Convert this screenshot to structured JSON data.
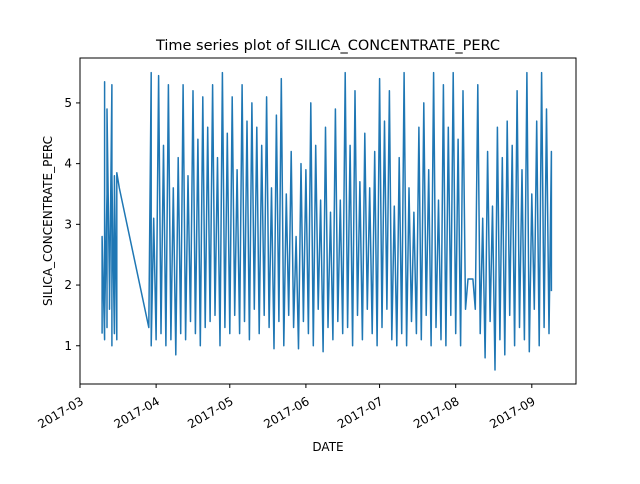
{
  "chart_data": {
    "type": "line",
    "title": "Time series plot of SILICA_CONCENTRATE_PERC",
    "xlabel": "DATE",
    "ylabel": "SILICA_CONCENTRATE_PERC",
    "x_ticks": [
      "2017-03",
      "2017-04",
      "2017-05",
      "2017-06",
      "2017-07",
      "2017-08",
      "2017-09"
    ],
    "y_ticks": [
      1,
      2,
      3,
      4,
      5
    ],
    "xlim": [
      "2017-03-01",
      "2017-09-19"
    ],
    "ylim": [
      0.37,
      5.74
    ],
    "grid": false,
    "series_color": "#1f77b4",
    "series": [
      {
        "x": [
          "2017-03-10",
          "2017-03-10",
          "2017-03-11",
          "2017-03-11",
          "2017-03-11",
          "2017-03-12",
          "2017-03-12",
          "2017-03-12",
          "2017-03-13",
          "2017-03-13",
          "2017-03-14",
          "2017-03-14",
          "2017-03-14",
          "2017-03-15",
          "2017-03-15",
          "2017-03-16",
          "2017-03-16",
          "2017-03-17",
          "2017-03-29",
          "2017-03-30",
          "2017-03-30",
          "2017-03-31",
          "2017-04-01",
          "2017-04-02",
          "2017-04-03",
          "2017-04-04",
          "2017-04-05",
          "2017-04-06",
          "2017-04-07",
          "2017-04-08",
          "2017-04-09",
          "2017-04-10",
          "2017-04-11",
          "2017-04-12",
          "2017-04-13",
          "2017-04-14",
          "2017-04-15",
          "2017-04-16",
          "2017-04-17",
          "2017-04-18",
          "2017-04-19",
          "2017-04-20",
          "2017-04-21",
          "2017-04-22",
          "2017-04-23",
          "2017-04-24",
          "2017-04-25",
          "2017-04-26",
          "2017-04-27",
          "2017-04-28",
          "2017-04-29",
          "2017-04-30",
          "2017-05-01",
          "2017-05-02",
          "2017-05-03",
          "2017-05-04",
          "2017-05-05",
          "2017-05-06",
          "2017-05-07",
          "2017-05-08",
          "2017-05-09",
          "2017-05-10",
          "2017-05-11",
          "2017-05-12",
          "2017-05-13",
          "2017-05-14",
          "2017-05-15",
          "2017-05-16",
          "2017-05-17",
          "2017-05-18",
          "2017-05-19",
          "2017-05-20",
          "2017-05-21",
          "2017-05-22",
          "2017-05-23",
          "2017-05-24",
          "2017-05-25",
          "2017-05-26",
          "2017-05-27",
          "2017-05-28",
          "2017-05-29",
          "2017-05-30",
          "2017-05-31",
          "2017-06-01",
          "2017-06-02",
          "2017-06-03",
          "2017-06-04",
          "2017-06-05",
          "2017-06-06",
          "2017-06-07",
          "2017-06-08",
          "2017-06-09",
          "2017-06-10",
          "2017-06-11",
          "2017-06-12",
          "2017-06-13",
          "2017-06-14",
          "2017-06-15",
          "2017-06-16",
          "2017-06-17",
          "2017-06-18",
          "2017-06-19",
          "2017-06-20",
          "2017-06-21",
          "2017-06-22",
          "2017-06-23",
          "2017-06-24",
          "2017-06-25",
          "2017-06-26",
          "2017-06-27",
          "2017-06-28",
          "2017-06-29",
          "2017-06-30",
          "2017-07-01",
          "2017-07-02",
          "2017-07-03",
          "2017-07-04",
          "2017-07-05",
          "2017-07-06",
          "2017-07-07",
          "2017-07-08",
          "2017-07-09",
          "2017-07-10",
          "2017-07-11",
          "2017-07-12",
          "2017-07-13",
          "2017-07-14",
          "2017-07-15",
          "2017-07-16",
          "2017-07-17",
          "2017-07-18",
          "2017-07-19",
          "2017-07-20",
          "2017-07-21",
          "2017-07-22",
          "2017-07-23",
          "2017-07-24",
          "2017-07-25",
          "2017-07-26",
          "2017-07-27",
          "2017-07-28",
          "2017-07-29",
          "2017-07-30",
          "2017-07-31",
          "2017-08-01",
          "2017-08-02",
          "2017-08-03",
          "2017-08-04",
          "2017-08-05",
          "2017-08-06",
          "2017-08-07",
          "2017-08-08",
          "2017-08-09",
          "2017-08-10",
          "2017-08-11",
          "2017-08-12",
          "2017-08-13",
          "2017-08-14",
          "2017-08-15",
          "2017-08-16",
          "2017-08-17",
          "2017-08-18",
          "2017-08-19",
          "2017-08-20",
          "2017-08-21",
          "2017-08-22",
          "2017-08-23",
          "2017-08-24",
          "2017-08-25",
          "2017-08-26",
          "2017-08-27",
          "2017-08-28",
          "2017-08-29",
          "2017-08-30",
          "2017-08-31",
          "2017-09-01",
          "2017-09-02",
          "2017-09-03",
          "2017-09-04",
          "2017-09-05",
          "2017-09-06",
          "2017-09-07",
          "2017-09-08",
          "2017-09-09",
          "2017-09-09"
        ],
        "y": [
          1.2,
          2.8,
          1.1,
          5.35,
          1.4,
          3.5,
          1.3,
          4.9,
          1.9,
          1.6,
          5.3,
          1.0,
          3.8,
          1.2,
          3.8,
          1.1,
          3.85,
          3.6,
          1.3,
          5.5,
          1.0,
          3.1,
          1.1,
          5.45,
          1.2,
          4.3,
          1.0,
          5.3,
          1.1,
          3.6,
          0.85,
          4.1,
          1.2,
          5.3,
          1.1,
          3.8,
          1.4,
          5.2,
          1.2,
          4.4,
          1.0,
          5.1,
          1.3,
          4.6,
          1.4,
          5.3,
          1.5,
          4.1,
          1.0,
          5.5,
          1.3,
          4.5,
          1.2,
          5.1,
          1.5,
          3.9,
          1.2,
          5.3,
          1.4,
          4.7,
          1.1,
          5.0,
          1.6,
          4.6,
          1.2,
          4.3,
          1.5,
          5.1,
          1.3,
          3.6,
          0.95,
          4.8,
          1.4,
          5.4,
          1.0,
          3.5,
          1.5,
          4.2,
          1.3,
          2.8,
          0.95,
          4.0,
          1.4,
          3.9,
          1.2,
          5.0,
          1.0,
          4.3,
          1.6,
          3.4,
          0.9,
          4.6,
          1.3,
          3.2,
          1.1,
          4.9,
          1.4,
          3.4,
          1.2,
          5.5,
          1.3,
          4.3,
          1.0,
          5.2,
          1.5,
          3.7,
          1.1,
          4.5,
          1.6,
          3.6,
          1.2,
          4.2,
          1.0,
          5.4,
          1.3,
          4.7,
          1.6,
          5.2,
          1.1,
          3.3,
          1.0,
          4.1,
          1.2,
          5.5,
          1.0,
          3.6,
          1.4,
          3.2,
          1.2,
          4.6,
          1.1,
          5.0,
          1.5,
          3.9,
          1.0,
          5.5,
          1.3,
          3.4,
          1.1,
          5.3,
          1.0,
          4.6,
          1.5,
          5.5,
          1.2,
          4.4,
          1.0,
          5.2,
          1.6,
          2.1,
          2.1,
          2.1,
          1.6,
          5.3,
          1.2,
          3.1,
          0.8,
          4.2,
          1.4,
          3.3,
          0.6,
          4.6,
          1.1,
          4.1,
          0.85,
          4.7,
          1.5,
          4.3,
          1.0,
          5.2,
          1.3,
          3.9,
          1.1,
          5.5,
          0.9,
          3.5,
          1.6,
          4.7,
          1.0,
          5.5,
          1.3,
          4.9,
          1.2,
          4.2,
          1.9
        ]
      }
    ]
  }
}
